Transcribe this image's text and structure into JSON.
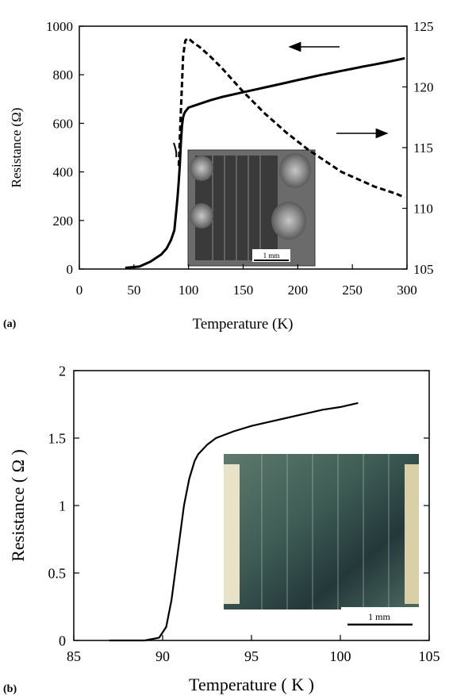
{
  "chart_data": [
    {
      "panel_label": "(a)",
      "type": "line",
      "xlabel": "Temperature (K)",
      "ylabel": "Resistance (Ω)",
      "xlim": [
        0,
        300
      ],
      "ylim": [
        0,
        1000
      ],
      "y2lim": [
        105,
        125
      ],
      "xticks": [
        "0",
        "50",
        "100",
        "150",
        "200",
        "250",
        "300"
      ],
      "yticks": [
        "0",
        "200",
        "400",
        "600",
        "800",
        "1000"
      ],
      "y2ticks": [
        "105",
        "110",
        "115",
        "120",
        "125"
      ],
      "grid": false,
      "series": [
        {
          "style": "solid",
          "axis": "left",
          "x": [
            42,
            55,
            65,
            75,
            80,
            84,
            87,
            89,
            90,
            91,
            92,
            93,
            94,
            95,
            96,
            97,
            100,
            110,
            120,
            130,
            140,
            150,
            160,
            170,
            180,
            190,
            200,
            210,
            220,
            230,
            240,
            250,
            260,
            270,
            280,
            290,
            298
          ],
          "y": [
            5,
            10,
            30,
            60,
            85,
            120,
            160,
            250,
            300,
            360,
            430,
            520,
            590,
            625,
            640,
            648,
            665,
            680,
            695,
            708,
            718,
            728,
            738,
            748,
            758,
            768,
            778,
            788,
            798,
            807,
            816,
            825,
            834,
            842,
            851,
            860,
            868
          ]
        },
        {
          "style": "dashed",
          "axis": "right",
          "x": [
            91,
            93,
            95,
            97,
            99,
            101,
            105,
            110,
            115,
            120,
            130,
            140,
            150,
            160,
            170,
            180,
            190,
            200,
            210,
            220,
            230,
            240,
            250,
            260,
            270,
            280,
            290,
            298
          ],
          "y": [
            113.5,
            118,
            122.5,
            123.8,
            124.0,
            123.9,
            123.6,
            123.3,
            122.9,
            122.5,
            121.6,
            120.6,
            119.6,
            118.7,
            117.8,
            117.0,
            116.2,
            115.5,
            114.8,
            114.2,
            113.6,
            113.0,
            112.6,
            112.2,
            111.8,
            111.5,
            111.2,
            110.9
          ]
        }
      ],
      "annotations": [
        "arrow pointing left toward solid curve",
        "arrow pointing right toward dashed curve"
      ],
      "inset": {
        "scale_label": "1 mm"
      }
    },
    {
      "panel_label": "(b)",
      "type": "line",
      "xlabel": "Temperature ( K )",
      "ylabel": "Resistance ( Ω )",
      "xlim": [
        85,
        105
      ],
      "ylim": [
        0,
        2
      ],
      "xticks": [
        "85",
        "90",
        "95",
        "100",
        "105"
      ],
      "yticks": [
        "0",
        "0.5",
        "1",
        "1.5",
        "2"
      ],
      "grid": false,
      "series": [
        {
          "style": "solid",
          "axis": "left",
          "x": [
            87.0,
            89.0,
            89.8,
            90.2,
            90.5,
            90.8,
            91.0,
            91.2,
            91.5,
            91.8,
            92.0,
            92.5,
            93.0,
            94.0,
            95.0,
            96.0,
            97.0,
            98.0,
            99.0,
            100.0,
            101.0
          ],
          "y": [
            0.0,
            0.0,
            0.02,
            0.1,
            0.3,
            0.6,
            0.8,
            1.0,
            1.2,
            1.33,
            1.38,
            1.45,
            1.5,
            1.55,
            1.59,
            1.62,
            1.65,
            1.68,
            1.71,
            1.73,
            1.76
          ]
        }
      ],
      "inset": {
        "scale_label": "1 mm"
      }
    }
  ]
}
